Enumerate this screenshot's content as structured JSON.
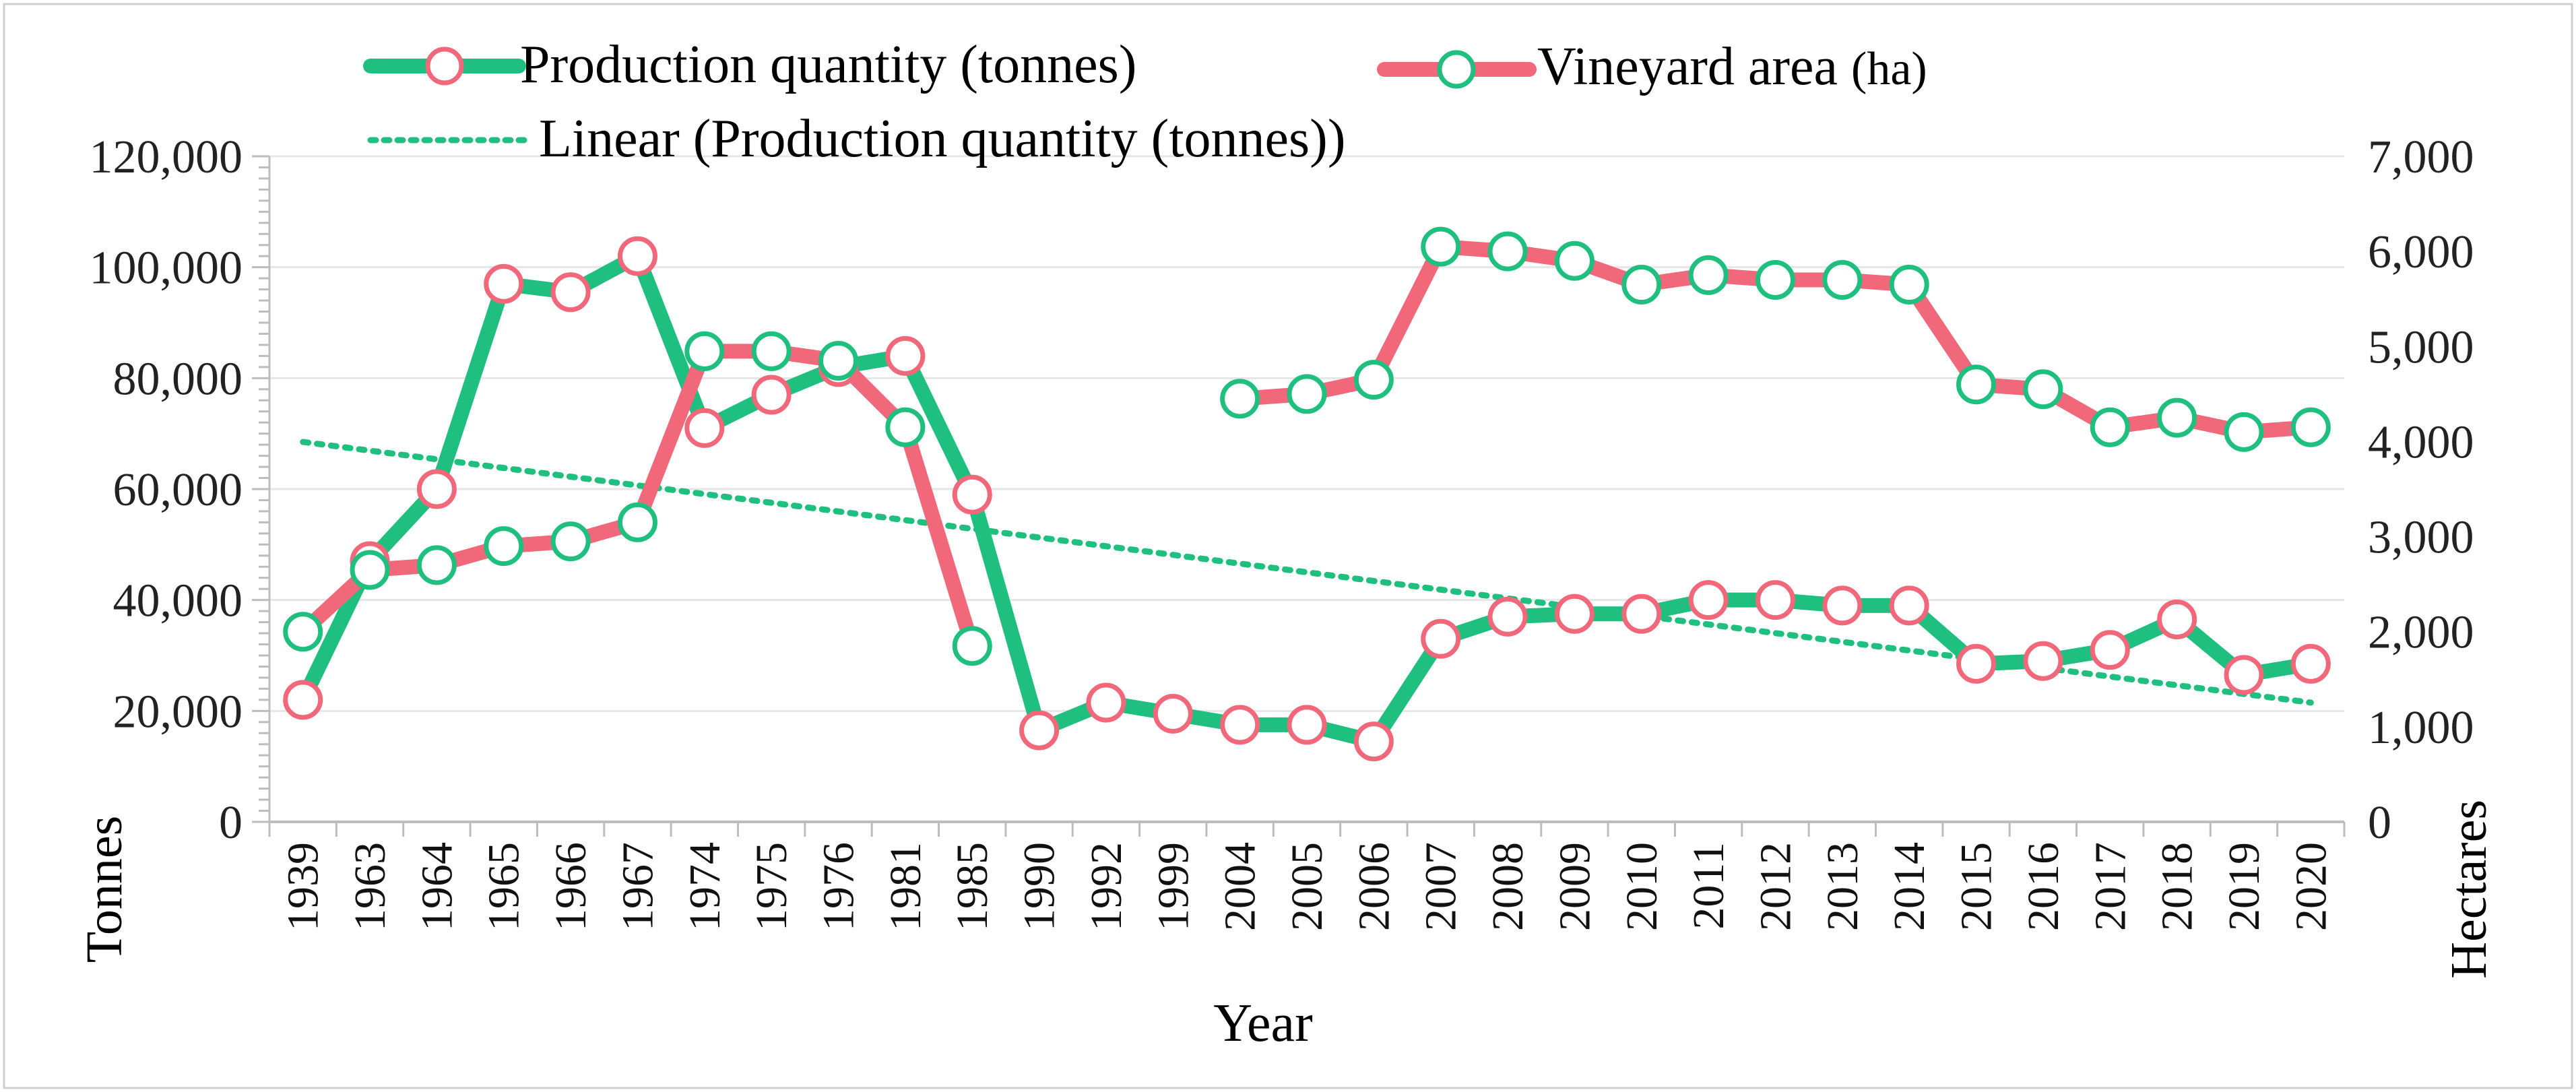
{
  "chart_data": {
    "type": "line",
    "title": "",
    "xlabel": "Year",
    "ylabel_left": "Tonnes",
    "ylabel_right": "Hectares",
    "categories": [
      "1939",
      "1963",
      "1964",
      "1965",
      "1966",
      "1967",
      "1974",
      "1975",
      "1976",
      "1981",
      "1985",
      "1990",
      "1992",
      "1999",
      "2004",
      "2005",
      "2006",
      "2007",
      "2008",
      "2009",
      "2010",
      "2011",
      "2012",
      "2013",
      "2014",
      "2015",
      "2016",
      "2017",
      "2018",
      "2019",
      "2020"
    ],
    "ylim_left": [
      0,
      120000
    ],
    "ylim_right": [
      0,
      7000
    ],
    "yticks_left": [
      "0",
      "20,000",
      "40,000",
      "60,000",
      "80,000",
      "100,000",
      "120,000"
    ],
    "yticks_right": [
      "0",
      "1,000",
      "2,000",
      "3,000",
      "4,000",
      "5,000",
      "6,000",
      "7,000"
    ],
    "grid": true,
    "legend_position": "top",
    "legend": {
      "production": "Production quantity (tonnes)",
      "vineyard_main": "Vineyard area",
      "vineyard_unit": "(ha)",
      "trend": "Linear (Production quantity (tonnes))"
    },
    "series": [
      {
        "name": "Production quantity (tonnes)",
        "axis": "left",
        "line_color": "#1fbf7f",
        "marker_edge_color": "#f0687a",
        "values": [
          22000,
          47000,
          60000,
          97000,
          95500,
          102000,
          71000,
          77000,
          82000,
          84000,
          59000,
          16500,
          21500,
          19500,
          17500,
          17500,
          14500,
          33000,
          37000,
          37500,
          37500,
          40000,
          40000,
          39000,
          39000,
          28500,
          29000,
          31000,
          36500,
          26500,
          28500
        ]
      },
      {
        "name": "Vineyard area (ha)",
        "axis": "right",
        "line_color": "#f0687a",
        "marker_edge_color": "#1fbf7f",
        "values": [
          2000,
          2650,
          2700,
          2900,
          2950,
          3150,
          4950,
          4950,
          4850,
          4150,
          1850,
          null,
          null,
          null,
          4450,
          4500,
          4650,
          6050,
          6000,
          5900,
          5650,
          5750,
          5700,
          5700,
          5650,
          4600,
          4550,
          4150,
          4250,
          4100,
          4150
        ]
      }
    ],
    "trendline": {
      "name": "Linear (Production quantity (tonnes))",
      "axis": "left",
      "color": "#1fbf7f",
      "start": 68500,
      "end": 21500
    }
  }
}
